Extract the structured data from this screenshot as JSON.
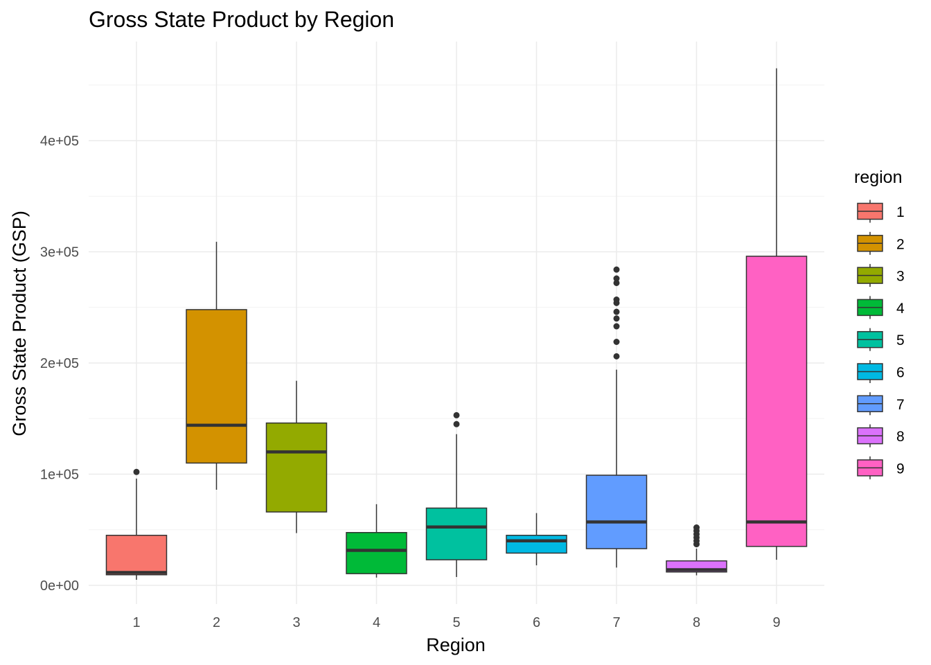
{
  "chart_data": {
    "type": "boxplot",
    "title": "Gross State Product by Region",
    "xlabel": "Region",
    "ylabel": "Gross State Product (GSP)",
    "ylim": [
      -15000,
      470000
    ],
    "y_ticks": [
      0,
      100000,
      200000,
      300000,
      400000
    ],
    "y_tick_labels": [
      "0e+00",
      "1e+05",
      "2e+05",
      "3e+05",
      "4e+05"
    ],
    "categories": [
      "1",
      "2",
      "3",
      "4",
      "5",
      "6",
      "7",
      "8",
      "9"
    ],
    "legend": {
      "title": "region",
      "position": "right"
    },
    "grid": true,
    "series": [
      {
        "name": "1",
        "color": "#F8766D",
        "min": 5000,
        "q1": 9500,
        "median": 11500,
        "q3": 45000,
        "max": 96000,
        "outliers": [
          102000
        ]
      },
      {
        "name": "2",
        "color": "#D39200",
        "min": 86000,
        "q1": 110000,
        "median": 144000,
        "q3": 248000,
        "max": 309000,
        "outliers": []
      },
      {
        "name": "3",
        "color": "#93AA00",
        "min": 47000,
        "q1": 66000,
        "median": 120000,
        "q3": 146000,
        "max": 184000,
        "outliers": []
      },
      {
        "name": "4",
        "color": "#00BA38",
        "min": 7000,
        "q1": 10500,
        "median": 31500,
        "q3": 47500,
        "max": 73000,
        "outliers": []
      },
      {
        "name": "5",
        "color": "#00C19F",
        "min": 7500,
        "q1": 23000,
        "median": 52500,
        "q3": 69500,
        "max": 136000,
        "outliers": [
          145000,
          153000
        ]
      },
      {
        "name": "6",
        "color": "#00B9E3",
        "min": 18000,
        "q1": 29000,
        "median": 40000,
        "q3": 45000,
        "max": 65000,
        "outliers": []
      },
      {
        "name": "7",
        "color": "#619CFF",
        "min": 16000,
        "q1": 33000,
        "median": 57000,
        "q3": 99000,
        "max": 194000,
        "outliers": [
          206000,
          219000,
          233000,
          240000,
          246000,
          254000,
          257000,
          272000,
          276000,
          284000
        ]
      },
      {
        "name": "8",
        "color": "#DB72FB",
        "min": 9000,
        "q1": 12000,
        "median": 14000,
        "q3": 22000,
        "max": 33000,
        "outliers": [
          37000,
          40000,
          43000,
          46000,
          49000,
          52000
        ]
      },
      {
        "name": "9",
        "color": "#FF61C3",
        "min": 23000,
        "q1": 35000,
        "median": 57000,
        "q3": 296000,
        "max": 465000,
        "outliers": []
      }
    ]
  }
}
